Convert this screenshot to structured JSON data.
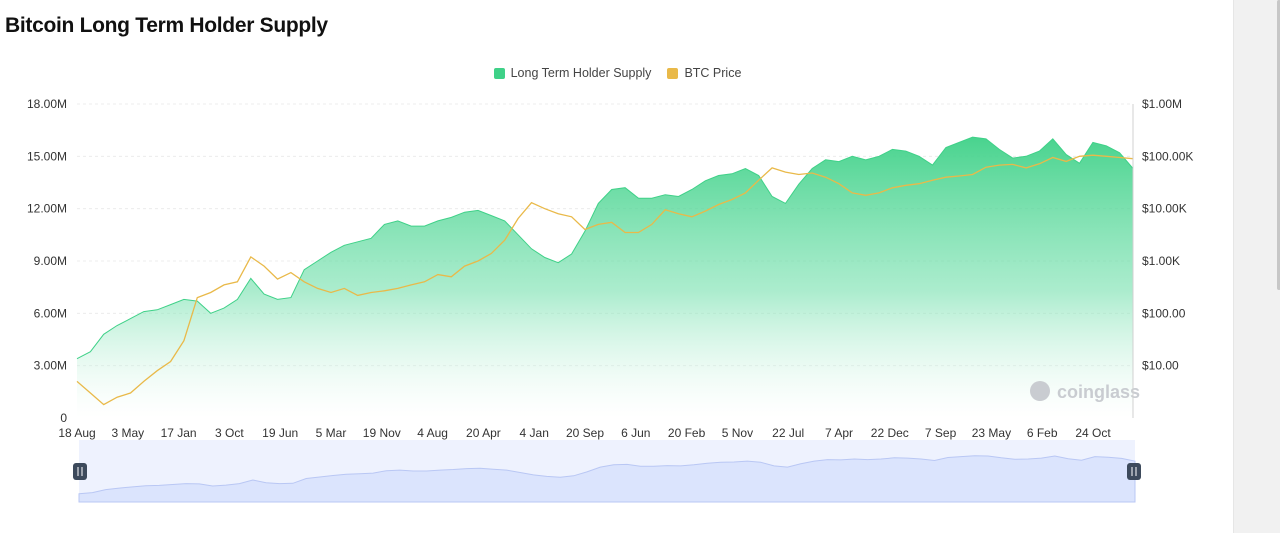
{
  "title": "Bitcoin Long Term Holder Supply",
  "watermark": "coinglass",
  "colors": {
    "supply": "#3fd188",
    "price": "#e9b949",
    "navigator": "#dbe4fd"
  },
  "chart_data": {
    "type": "area",
    "title": "Bitcoin Long Term Holder Supply",
    "legend": [
      "Long Term Holder Supply",
      "BTC Price"
    ],
    "legend_position": "top-center",
    "grid": true,
    "x_tick_labels": [
      "18 Aug",
      "3 May",
      "17 Jan",
      "3 Oct",
      "19 Jun",
      "5 Mar",
      "19 Nov",
      "4 Aug",
      "20 Apr",
      "4 Jan",
      "20 Sep",
      "6 Jun",
      "20 Feb",
      "5 Nov",
      "22 Jul",
      "7 Apr",
      "22 Dec",
      "7 Sep",
      "23 May",
      "6 Feb",
      "24 Oct"
    ],
    "y_left_ticks": [
      "0",
      "3.00M",
      "6.00M",
      "9.00M",
      "12.00M",
      "15.00M",
      "18.00M"
    ],
    "y_right_ticks": [
      "$10.00",
      "$100.00",
      "$1.00K",
      "$10.00K",
      "$100.00K",
      "$1.00M"
    ],
    "y_left_range": [
      0,
      18000000
    ],
    "y_right_range": [
      1,
      1000000
    ],
    "y_right_scale": "log",
    "series": [
      {
        "name": "Long Term Holder Supply",
        "axis": "left",
        "values": [
          3.4,
          3.8,
          4.8,
          5.3,
          5.7,
          6.1,
          6.2,
          6.5,
          6.8,
          6.7,
          6.0,
          6.3,
          6.8,
          8.0,
          7.1,
          6.8,
          6.9,
          8.5,
          9.0,
          9.5,
          9.9,
          10.1,
          10.3,
          11.1,
          11.3,
          11.0,
          11.0,
          11.3,
          11.5,
          11.8,
          11.9,
          11.6,
          11.3,
          10.5,
          9.7,
          9.2,
          8.9,
          9.4,
          10.7,
          12.3,
          13.1,
          13.2,
          12.6,
          12.6,
          12.8,
          12.7,
          13.1,
          13.6,
          13.9,
          14.0,
          14.3,
          13.9,
          12.7,
          12.3,
          13.4,
          14.3,
          14.8,
          14.7,
          15.0,
          14.8,
          15.0,
          15.4,
          15.3,
          15.0,
          14.5,
          15.5,
          15.8,
          16.1,
          16.0,
          15.4,
          14.9,
          15.0,
          15.3,
          16.0,
          15.1,
          14.6,
          15.8,
          15.6,
          15.2,
          14.3
        ]
      },
      {
        "name": "BTC Price",
        "axis": "right",
        "values": [
          5,
          3,
          1.8,
          2.5,
          3,
          5,
          8,
          12,
          30,
          200,
          250,
          350,
          400,
          1200,
          800,
          450,
          600,
          400,
          300,
          250,
          300,
          220,
          250,
          270,
          300,
          350,
          400,
          550,
          500,
          800,
          1000,
          1400,
          2500,
          6500,
          13000,
          10000,
          8000,
          7000,
          4000,
          5000,
          5500,
          3500,
          3500,
          5000,
          9500,
          8000,
          7000,
          9000,
          12000,
          15000,
          20000,
          35000,
          60000,
          50000,
          45000,
          48000,
          40000,
          30000,
          20000,
          18000,
          20000,
          25000,
          28000,
          30000,
          35000,
          40000,
          42000,
          45000,
          62000,
          68000,
          70000,
          60000,
          72000,
          95000,
          80000,
          100000,
          105000,
          100000,
          95000,
          90000
        ]
      }
    ]
  }
}
